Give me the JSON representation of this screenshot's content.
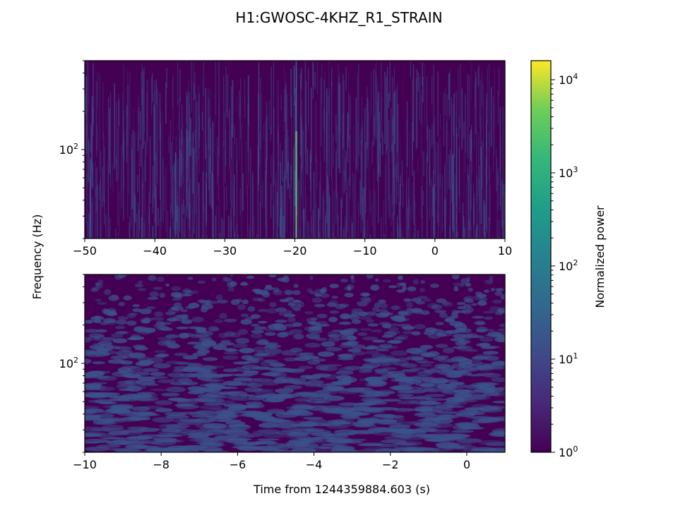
{
  "chart_data": {
    "type": "heatmap",
    "title": "H1:GWOSC-4KHZ_R1_STRAIN",
    "ylabel": "Frequency (Hz)",
    "xlabel": "Time from 1244359884.603 (s)",
    "colorbar": {
      "label": "Normalized power",
      "scale": "log",
      "range": [
        1,
        16000
      ],
      "colormap": "viridis",
      "ticks": [
        {
          "value": 1,
          "base": "10",
          "exp": "0"
        },
        {
          "value": 10,
          "base": "10",
          "exp": "1"
        },
        {
          "value": 100,
          "base": "10",
          "exp": "2"
        },
        {
          "value": 1000,
          "base": "10",
          "exp": "3"
        },
        {
          "value": 10000,
          "base": "10",
          "exp": "4"
        }
      ]
    },
    "panels": [
      {
        "name": "top",
        "xlim": [
          -50,
          10
        ],
        "ylim": [
          20,
          500
        ],
        "yscale": "log",
        "xticks": [
          {
            "value": -50,
            "label": "−50"
          },
          {
            "value": -40,
            "label": "−40"
          },
          {
            "value": -30,
            "label": "−30"
          },
          {
            "value": -20,
            "label": "−20"
          },
          {
            "value": -10,
            "label": "−10"
          },
          {
            "value": 0,
            "label": "0"
          },
          {
            "value": 10,
            "label": "10"
          }
        ],
        "yticks": [
          {
            "value": 100,
            "base": "10",
            "exp": "2"
          }
        ],
        "feature": {
          "x": -19.8,
          "description": "narrow vertical high-power line"
        }
      },
      {
        "name": "bottom",
        "xlim": [
          -10,
          1
        ],
        "ylim": [
          20,
          500
        ],
        "yscale": "log",
        "xticks": [
          {
            "value": -10,
            "label": "−10"
          },
          {
            "value": -8,
            "label": "−8"
          },
          {
            "value": -6,
            "label": "−6"
          },
          {
            "value": -4,
            "label": "−4"
          },
          {
            "value": -2,
            "label": "−2"
          },
          {
            "value": 0,
            "label": "0"
          }
        ],
        "yticks": [
          {
            "value": 100,
            "base": "10",
            "exp": "2"
          }
        ]
      }
    ],
    "colors": {
      "background_low": "#440154",
      "noise_mid": "#3b528b",
      "feature": "#5ec962"
    }
  }
}
